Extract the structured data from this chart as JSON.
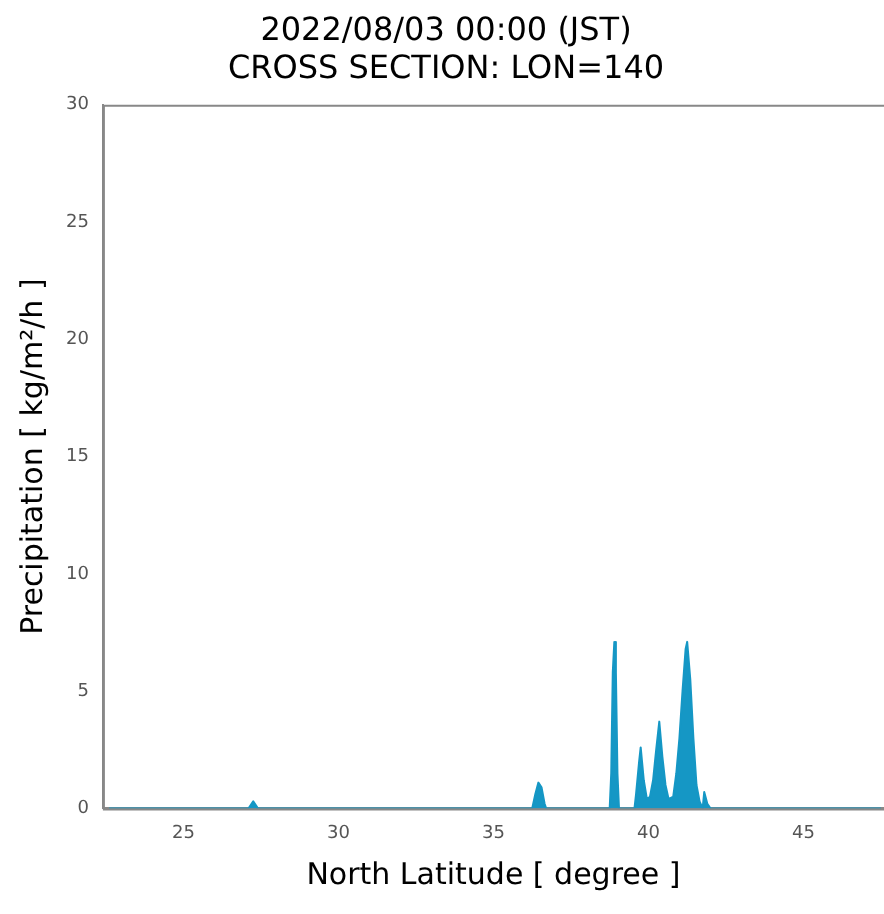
{
  "chart_data": {
    "type": "area",
    "title": "2022/08/03 00:00 (JST)\nCROSS SECTION: LON=140",
    "xlabel": "North Latitude [ degree ]",
    "ylabel": "Precipitation [ kg/m²/h ]",
    "xlim": [
      22.4,
      47.6
    ],
    "xticks": [
      25,
      30,
      35,
      40,
      45
    ],
    "ylim": [
      0,
      30
    ],
    "yticks": [
      0,
      5,
      10,
      15,
      20,
      25,
      30
    ],
    "grid": false,
    "legend": false,
    "series": [
      {
        "color": "#1597c5",
        "x": [
          22.6,
          27.1,
          27.25,
          27.4,
          36.25,
          36.35,
          36.45,
          36.55,
          36.65,
          36.7,
          38.75,
          38.8,
          38.85,
          38.9,
          38.95,
          39.0,
          39.05,
          39.55,
          39.6,
          39.7,
          39.75,
          39.85,
          39.95,
          40.05,
          40.15,
          40.25,
          40.35,
          40.45,
          40.55,
          40.65,
          40.8,
          40.9,
          41.0,
          41.1,
          41.2,
          41.25,
          41.35,
          41.45,
          41.55,
          41.65,
          41.75,
          41.8,
          41.9,
          42.0,
          47.5
        ],
        "values": [
          0,
          0,
          0.3,
          0,
          0,
          0.6,
          1.1,
          0.9,
          0.2,
          0,
          0,
          1.5,
          5.8,
          7.1,
          5.8,
          1.5,
          0,
          0,
          0.6,
          2.0,
          2.6,
          1.2,
          0.4,
          0.5,
          1.2,
          2.5,
          3.7,
          2.2,
          1.0,
          0.4,
          0.5,
          1.5,
          3.0,
          5.0,
          6.8,
          7.1,
          5.5,
          3.0,
          1.0,
          0.3,
          0,
          0.7,
          0.2,
          0,
          0
        ]
      }
    ]
  }
}
